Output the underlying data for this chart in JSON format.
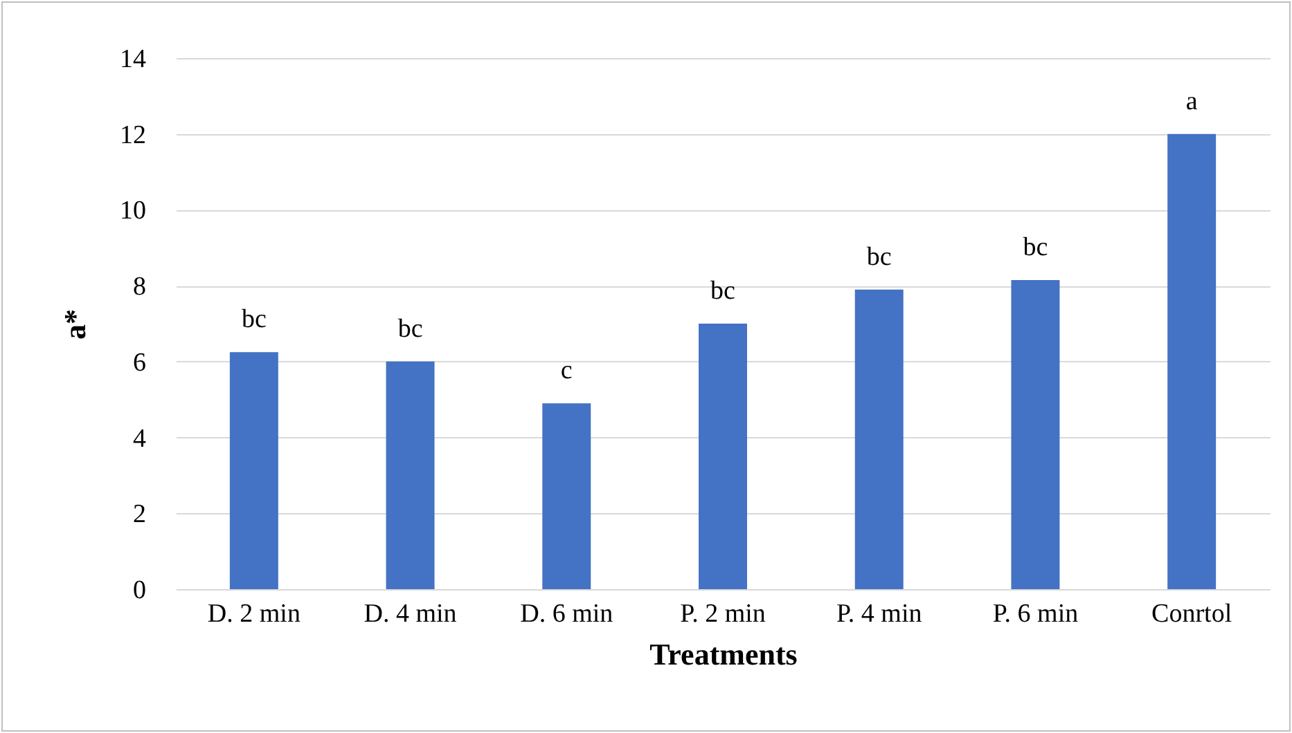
{
  "chart_data": {
    "type": "bar",
    "xlabel": "Treatments",
    "ylabel": "a*",
    "categories": [
      "D. 2 min",
      "D. 4 min",
      "D. 6 min",
      "P. 2 min",
      "P. 4 min",
      "P. 6 min",
      "Conrtol"
    ],
    "values": [
      6.25,
      6.0,
      4.9,
      7.0,
      7.9,
      8.15,
      12.0
    ],
    "color": "#4472c4",
    "ylim": [
      0,
      14
    ],
    "yticks": [
      0,
      2,
      4,
      6,
      8,
      10,
      12,
      14
    ],
    "grid": "y",
    "annotations": [
      {
        "text": "bc",
        "x": "D. 2 min",
        "y": 6.25
      },
      {
        "text": "bc",
        "x": "D. 4 min",
        "y": 6.0
      },
      {
        "text": "c",
        "x": "D. 6 min",
        "y": 4.9
      },
      {
        "text": "bc",
        "x": "P. 2 min",
        "y": 7.0
      },
      {
        "text": "bc",
        "x": "P. 4 min",
        "y": 7.9
      },
      {
        "text": "bc",
        "x": "P. 6 min",
        "y": 8.15
      },
      {
        "text": "a",
        "x": "Conrtol",
        "y": 12.0
      }
    ]
  }
}
